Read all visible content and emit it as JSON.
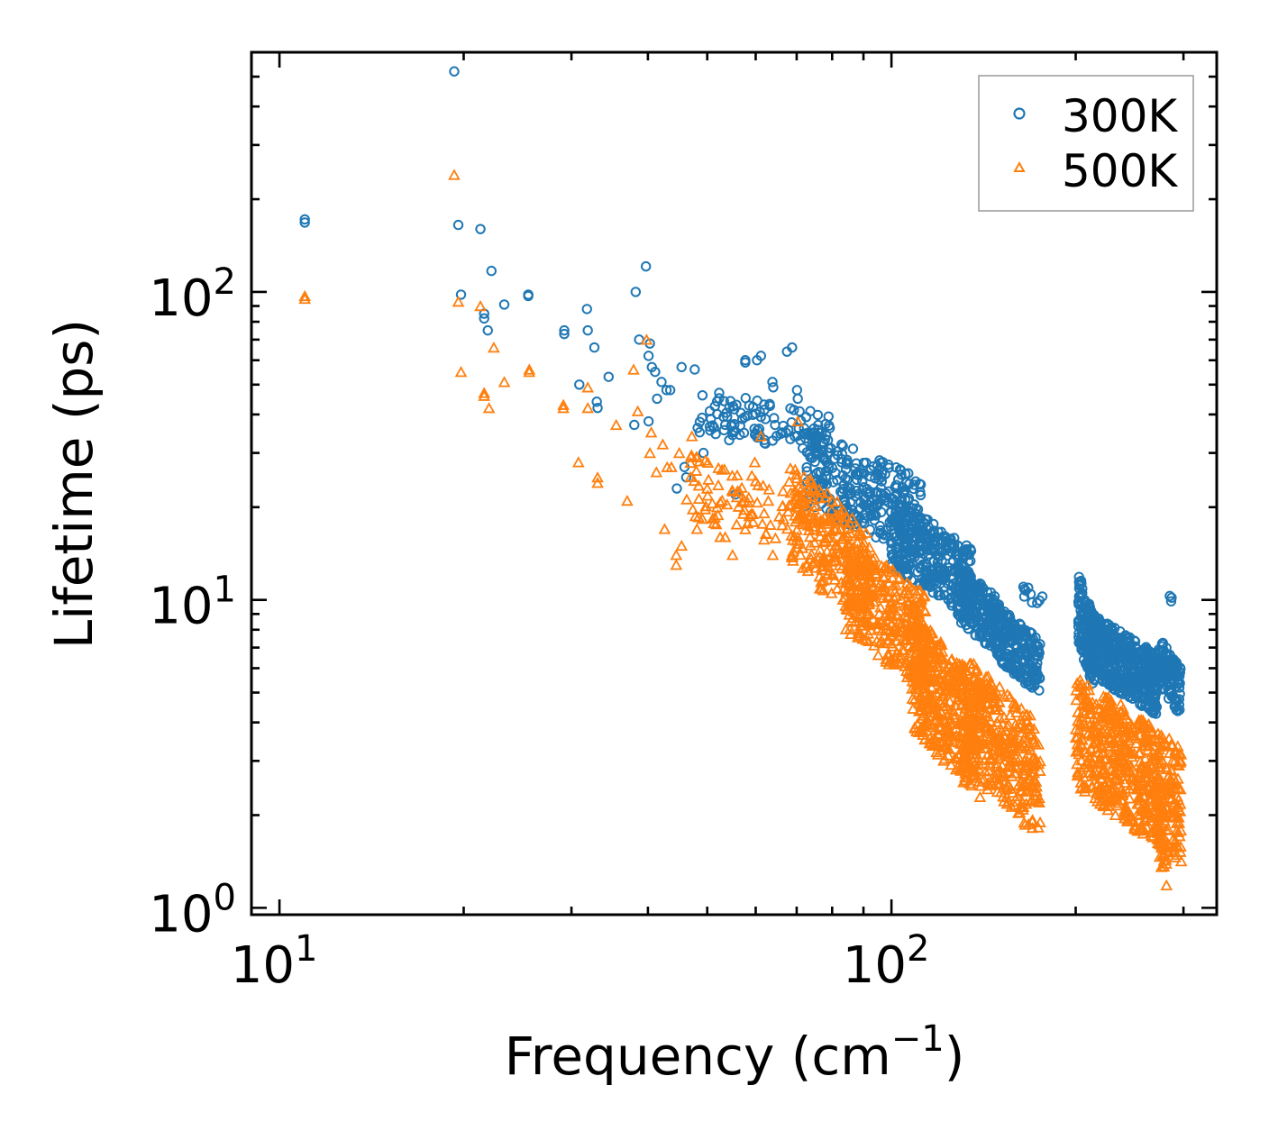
{
  "chart_data": {
    "type": "scatter",
    "x_scale": "log",
    "y_scale": "log",
    "xlabel": "Frequency (cm",
    "xlabel_superscript": "−1",
    "xlabel_suffix": ")",
    "ylabel": "Lifetime (ps)",
    "xlim": [
      9,
      340
    ],
    "ylim": [
      0.95,
      600
    ],
    "x_ticks": [
      {
        "base": "10",
        "exp": "1",
        "value": 10
      },
      {
        "base": "10",
        "exp": "2",
        "value": 100
      }
    ],
    "y_ticks": [
      {
        "base": "10",
        "exp": "0",
        "value": 1
      },
      {
        "base": "10",
        "exp": "1",
        "value": 10
      },
      {
        "base": "10",
        "exp": "2",
        "value": 100
      }
    ],
    "legend_position": "top-right",
    "legend": [
      "300K",
      "500K"
    ],
    "colors": {
      "300K": "#1f77b4",
      "500K": "#ff7f0e",
      "axis": "#000000",
      "legend_border": "#999999"
    },
    "series": [
      {
        "name": "300K",
        "marker": "circle",
        "explicit_points": [
          [
            11.0,
            172
          ],
          [
            11.0,
            168
          ],
          [
            19.3,
            520
          ],
          [
            19.6,
            165
          ],
          [
            21.3,
            160
          ],
          [
            19.8,
            98
          ],
          [
            21.6,
            85
          ],
          [
            21.6,
            82
          ],
          [
            21.9,
            75
          ],
          [
            22.2,
            117
          ],
          [
            23.3,
            91
          ],
          [
            25.5,
            98
          ],
          [
            25.5,
            97
          ],
          [
            29.2,
            75
          ],
          [
            29.2,
            73
          ],
          [
            31.8,
            88
          ],
          [
            31.9,
            75
          ],
          [
            32.7,
            66
          ],
          [
            30.9,
            50
          ],
          [
            33.0,
            44
          ],
          [
            33.1,
            42
          ],
          [
            34.5,
            53
          ],
          [
            38.2,
            100
          ],
          [
            38.7,
            70
          ],
          [
            39.7,
            121
          ],
          [
            40.3,
            68
          ],
          [
            40.1,
            62
          ],
          [
            40.6,
            57
          ],
          [
            41.1,
            55
          ],
          [
            41.4,
            45
          ],
          [
            42.1,
            51
          ],
          [
            42.9,
            48
          ],
          [
            43.5,
            48
          ],
          [
            40.1,
            38
          ],
          [
            38.0,
            37
          ],
          [
            44.6,
            23
          ],
          [
            45.4,
            57
          ],
          [
            47.7,
            56
          ],
          [
            50.5,
            41
          ],
          [
            52.3,
            47
          ],
          [
            55.8,
            43
          ],
          [
            57.7,
            60
          ],
          [
            57.7,
            59
          ],
          [
            60.3,
            60
          ],
          [
            61.2,
            62
          ],
          [
            63.9,
            51
          ],
          [
            64.1,
            49
          ],
          [
            67.5,
            64
          ],
          [
            68.8,
            66
          ],
          [
            70.1,
            48
          ],
          [
            70.3,
            45
          ],
          [
            73.7,
            41
          ],
          [
            45.9,
            27
          ],
          [
            46.2,
            25
          ],
          [
            48.6,
            35
          ],
          [
            49.3,
            30
          ],
          [
            53.5,
            37
          ],
          [
            54.3,
            33
          ],
          [
            55.6,
            22
          ]
        ],
        "clusters": [
          {
            "x_range": [
              48,
              80
            ],
            "y_range": [
              30,
              44
            ],
            "count": 110
          },
          {
            "x_range": [
              72,
              112
            ],
            "y_range": [
              15,
              30
            ],
            "count": 300
          },
          {
            "x_range": [
              100,
              135
            ],
            "y_range": [
              9.5,
              18
            ],
            "count": 320
          },
          {
            "x_range": [
              128,
              150
            ],
            "y_range": [
              7,
              11.5
            ],
            "count": 200
          },
          {
            "x_range": [
              148,
              175
            ],
            "y_range": [
              5.2,
              8.5
            ],
            "count": 220
          },
          {
            "x_range": [
              162,
              178
            ],
            "y_range": [
              9.5,
              11
            ],
            "count": 10
          },
          {
            "x_range": [
              202,
              215
            ],
            "y_range": [
              5.5,
              10.3
            ],
            "count": 160
          },
          {
            "x_range": [
              212,
              272
            ],
            "y_range": [
              4.5,
              7.8
            ],
            "count": 480
          },
          {
            "x_range": [
              272,
              297
            ],
            "y_range": [
              4.4,
              6.8
            ],
            "count": 110
          },
          {
            "x_range": [
              284,
              287
            ],
            "y_range": [
              9.8,
              10.6
            ],
            "count": 3
          }
        ]
      },
      {
        "name": "500K",
        "marker": "triangle",
        "explicit_points": [
          [
            11.0,
            97
          ],
          [
            11.0,
            95
          ],
          [
            19.3,
            240
          ],
          [
            19.6,
            93
          ],
          [
            19.8,
            55
          ],
          [
            21.3,
            90
          ],
          [
            21.6,
            47
          ],
          [
            21.6,
            46
          ],
          [
            22.0,
            42
          ],
          [
            22.4,
            66
          ],
          [
            23.3,
            51
          ],
          [
            25.6,
            56
          ],
          [
            25.6,
            55
          ],
          [
            29.1,
            43
          ],
          [
            29.1,
            42
          ],
          [
            30.8,
            28
          ],
          [
            31.9,
            49
          ],
          [
            31.9,
            42
          ],
          [
            33.1,
            25
          ],
          [
            33.1,
            24
          ],
          [
            35.5,
            37
          ],
          [
            37.0,
            21
          ],
          [
            37.9,
            56
          ],
          [
            38.5,
            41
          ],
          [
            39.8,
            70
          ],
          [
            40.5,
            35
          ],
          [
            40.3,
            30
          ],
          [
            41.3,
            26
          ],
          [
            42.3,
            32
          ],
          [
            42.6,
            17
          ],
          [
            43.0,
            27
          ],
          [
            43.7,
            27
          ],
          [
            44.5,
            13
          ],
          [
            44.5,
            14
          ],
          [
            45.0,
            30
          ],
          [
            45.4,
            15
          ],
          [
            47.2,
            34
          ],
          [
            48.1,
            17
          ],
          [
            50.0,
            23
          ],
          [
            51.9,
            20
          ],
          [
            52.5,
            16
          ],
          [
            53.5,
            16
          ],
          [
            55.0,
            14
          ],
          [
            57.5,
            21
          ],
          [
            59.8,
            28
          ],
          [
            61.2,
            34
          ],
          [
            64.0,
            14
          ],
          [
            70.3,
            38
          ]
        ],
        "clusters": [
          {
            "x_range": [
              46,
              72
            ],
            "y_range": [
              15,
              26
            ],
            "count": 90
          },
          {
            "x_range": [
              68,
              92
            ],
            "y_range": [
              9,
              22
            ],
            "count": 250
          },
          {
            "x_range": [
              84,
              115
            ],
            "y_range": [
              5.5,
              13
            ],
            "count": 330
          },
          {
            "x_range": [
              108,
              140
            ],
            "y_range": [
              2.5,
              7
            ],
            "count": 420
          },
          {
            "x_range": [
              130,
              175
            ],
            "y_range": [
              1.9,
              5.2
            ],
            "count": 380
          },
          {
            "x_range": [
              200,
              298
            ],
            "y_range": [
              1.6,
              4.4
            ],
            "count": 620
          },
          {
            "x_range": [
              270,
              282
            ],
            "y_range": [
              1.25,
              2.2
            ],
            "count": 40
          }
        ]
      }
    ]
  }
}
